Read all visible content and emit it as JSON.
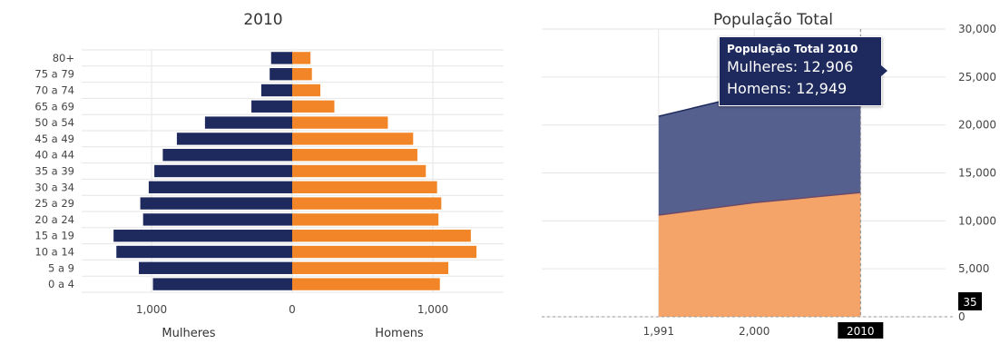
{
  "chart_data": [
    {
      "type": "bar",
      "orientation": "horizontal",
      "title": "2010",
      "categories": [
        "80+",
        "75 a 79",
        "70 a 74",
        "65 a 69",
        "50 a 54",
        "45 a 49",
        "40 a 44",
        "35 a 39",
        "30 a 34",
        "25 a 29",
        "20 a 24",
        "15 a 19",
        "10 a 14",
        "5 a 9",
        "0 a 4"
      ],
      "series": [
        {
          "name": "Mulheres",
          "side": "left",
          "color": "#1e2a5e",
          "values": [
            150,
            160,
            220,
            290,
            620,
            820,
            920,
            980,
            1020,
            1080,
            1060,
            1270,
            1250,
            1090,
            990
          ]
        },
        {
          "name": "Homens",
          "side": "right",
          "color": "#f28527",
          "values": [
            130,
            140,
            200,
            300,
            680,
            860,
            890,
            950,
            1030,
            1060,
            1040,
            1270,
            1310,
            1110,
            1050
          ]
        }
      ],
      "xlim": [
        -1500,
        1500
      ],
      "xticks": [
        {
          "value": -1000,
          "label": "1,000"
        },
        {
          "value": 0,
          "label": "0"
        },
        {
          "value": 1000,
          "label": "1,000"
        }
      ],
      "grid": true
    },
    {
      "type": "area",
      "stacked": true,
      "title": "População Total",
      "x": [
        1991,
        2000,
        2010
      ],
      "xticks": [
        {
          "value": 1991,
          "label": "1,991"
        },
        {
          "value": 2000,
          "label": "2,000"
        },
        {
          "value": 2010,
          "label": "2010"
        }
      ],
      "xlim": [
        1980,
        2018
      ],
      "series": [
        {
          "name": "Mulheres",
          "color": "#1e2a5e",
          "values": [
            10300,
            11400,
            12906
          ]
        },
        {
          "name": "Homens",
          "color": "#f28527",
          "values": [
            10600,
            11900,
            12949
          ]
        }
      ],
      "ylim": [
        0,
        30000
      ],
      "yticks": [
        "0",
        "5,000",
        "10,000",
        "15,000",
        "20,000",
        "25,000",
        "30,000"
      ],
      "yaxis_side": "right",
      "grid": true,
      "crosshair": {
        "x_label": "2010",
        "y_label": "35"
      },
      "tooltip": {
        "title": "População Total 2010",
        "rows": [
          {
            "label": "Mulheres",
            "value": "12,906"
          },
          {
            "label": "Homens",
            "value": "12,949"
          }
        ]
      }
    }
  ]
}
